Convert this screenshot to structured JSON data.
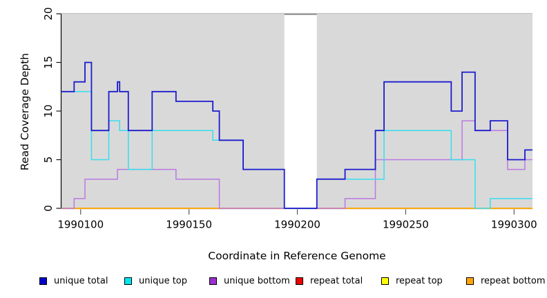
{
  "chart_data": {
    "type": "line",
    "subtype": "step",
    "title": "",
    "xlabel": "Coordinate in Reference Genome",
    "ylabel": "Read Coverage Depth",
    "x_ticks": [
      1990100,
      1990150,
      1990200,
      1990250,
      1990300
    ],
    "y_ticks": [
      0,
      5,
      10,
      15,
      20
    ],
    "xlim": [
      1990091,
      1990308.5
    ],
    "ylim": [
      0,
      20
    ],
    "grid": "off",
    "plot_bg": "#d9d9d9",
    "plot_top_border": "#c4c4c4",
    "gap_region": {
      "x0": 1990194,
      "x1": 1990209,
      "fill": "#ffffff",
      "top_border": "#7d7d7d"
    },
    "legend_position": "bottom",
    "draw_order": [
      3,
      4,
      5,
      2,
      1,
      0
    ],
    "series": [
      {
        "name": "unique total",
        "line_color": "#1A1ACE",
        "swatch_color": "#0000CD",
        "line_width": 1.8,
        "steps": [
          [
            1990091,
            12
          ],
          [
            1990097,
            13
          ],
          [
            1990102,
            15
          ],
          [
            1990105,
            8
          ],
          [
            1990113,
            12
          ],
          [
            1990117,
            13
          ],
          [
            1990118,
            12
          ],
          [
            1990122,
            8
          ],
          [
            1990133,
            12
          ],
          [
            1990144,
            11
          ],
          [
            1990161,
            10
          ],
          [
            1990164,
            7
          ],
          [
            1990175,
            4
          ],
          [
            1990194,
            0
          ],
          [
            1990209,
            3
          ],
          [
            1990222,
            4
          ],
          [
            1990236,
            8
          ],
          [
            1990240,
            13
          ],
          [
            1990271,
            10
          ],
          [
            1990276,
            14
          ],
          [
            1990282,
            8
          ],
          [
            1990289,
            9
          ],
          [
            1990297,
            5
          ],
          [
            1990305,
            6
          ]
        ]
      },
      {
        "name": "unique top",
        "line_color": "#35DFEE",
        "swatch_color": "#00E5EE",
        "line_width": 1.5,
        "steps": [
          [
            1990091,
            12
          ],
          [
            1990105,
            5
          ],
          [
            1990113,
            9
          ],
          [
            1990118,
            8
          ],
          [
            1990122,
            4
          ],
          [
            1990133,
            8
          ],
          [
            1990161,
            7
          ],
          [
            1990175,
            4
          ],
          [
            1990194,
            0
          ],
          [
            1990209,
            3
          ],
          [
            1990240,
            8
          ],
          [
            1990271,
            5
          ],
          [
            1990282,
            0
          ],
          [
            1990289,
            1
          ]
        ]
      },
      {
        "name": "unique bottom",
        "line_color": "#BA78E2",
        "swatch_color": "#9B30CE",
        "line_width": 1.5,
        "steps": [
          [
            1990091,
            0
          ],
          [
            1990097,
            1
          ],
          [
            1990102,
            3
          ],
          [
            1990117,
            4
          ],
          [
            1990144,
            3
          ],
          [
            1990164,
            0
          ],
          [
            1990222,
            1
          ],
          [
            1990236,
            5
          ],
          [
            1990276,
            9
          ],
          [
            1990282,
            8
          ],
          [
            1990297,
            4
          ],
          [
            1990305,
            5
          ]
        ]
      },
      {
        "name": "repeat total",
        "line_color": "#DC0000",
        "swatch_color": "#EE0000",
        "line_width": 1.4,
        "steps": [
          [
            1990091,
            0
          ]
        ]
      },
      {
        "name": "repeat top",
        "line_color": "#F5F500",
        "swatch_color": "#FFFF00",
        "line_width": 1.4,
        "steps": [
          [
            1990091,
            0
          ]
        ]
      },
      {
        "name": "repeat bottom",
        "line_color": "#FFA500",
        "swatch_color": "#FFA500",
        "line_width": 1.6,
        "steps": [
          [
            1990091,
            0
          ]
        ]
      }
    ]
  }
}
